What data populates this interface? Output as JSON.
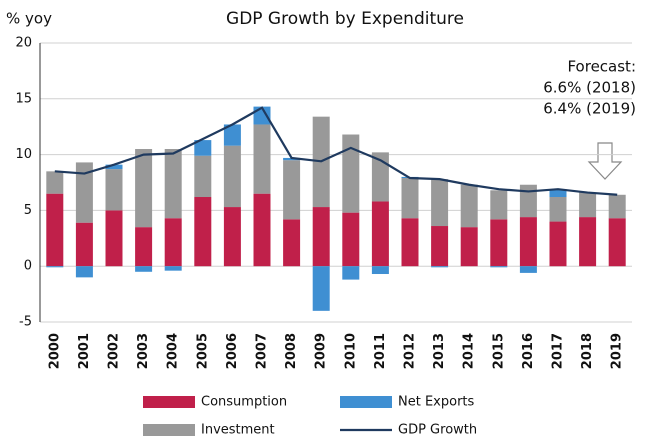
{
  "chart_data": {
    "type": "bar",
    "title": "GDP Growth by Expenditure",
    "y_label": "% yoy",
    "categories": [
      "2000",
      "2001",
      "2002",
      "2003",
      "2004",
      "2005",
      "2006",
      "2007",
      "2008",
      "2009",
      "2010",
      "2011",
      "2012",
      "2013",
      "2014",
      "2015",
      "2016",
      "2017",
      "2018",
      "2019"
    ],
    "series": [
      {
        "name": "Consumption",
        "color": "#c0204a",
        "values": [
          6.5,
          3.9,
          5.0,
          3.5,
          4.3,
          6.2,
          5.3,
          6.5,
          4.2,
          5.3,
          4.8,
          5.8,
          4.3,
          3.6,
          3.5,
          4.2,
          4.4,
          4.0,
          4.4,
          4.3
        ]
      },
      {
        "name": "Investment",
        "color": "#999999",
        "values": [
          2.0,
          5.4,
          3.7,
          7.0,
          6.2,
          3.7,
          5.5,
          6.2,
          5.3,
          8.1,
          7.0,
          4.4,
          3.6,
          4.2,
          3.8,
          2.6,
          2.9,
          2.2,
          2.2,
          2.1
        ]
      },
      {
        "name": "Net Exports",
        "color": "#3f8fd2",
        "values": [
          -0.1,
          -1.0,
          0.4,
          -0.5,
          -0.4,
          1.4,
          1.9,
          1.6,
          0.2,
          -4.0,
          -1.2,
          -0.7,
          0.1,
          -0.1,
          0,
          -0.1,
          -0.6,
          0.7,
          0,
          0
        ]
      },
      {
        "name": "GDP Growth",
        "color": "#1f3a5f",
        "type": "line",
        "values": [
          8.5,
          8.3,
          9.1,
          10.0,
          10.1,
          11.4,
          12.7,
          14.2,
          9.7,
          9.4,
          10.6,
          9.5,
          7.9,
          7.8,
          7.3,
          6.9,
          6.7,
          6.9,
          6.6,
          6.4
        ]
      }
    ],
    "annotations": [
      "Forecast:",
      "6.6% (2018)",
      "6.4% (2019)"
    ],
    "ylim": [
      -5,
      20
    ],
    "yticks": [
      -5,
      0,
      5,
      10,
      15,
      20
    ],
    "grid": true,
    "stacked": true,
    "legend": "bottom"
  }
}
